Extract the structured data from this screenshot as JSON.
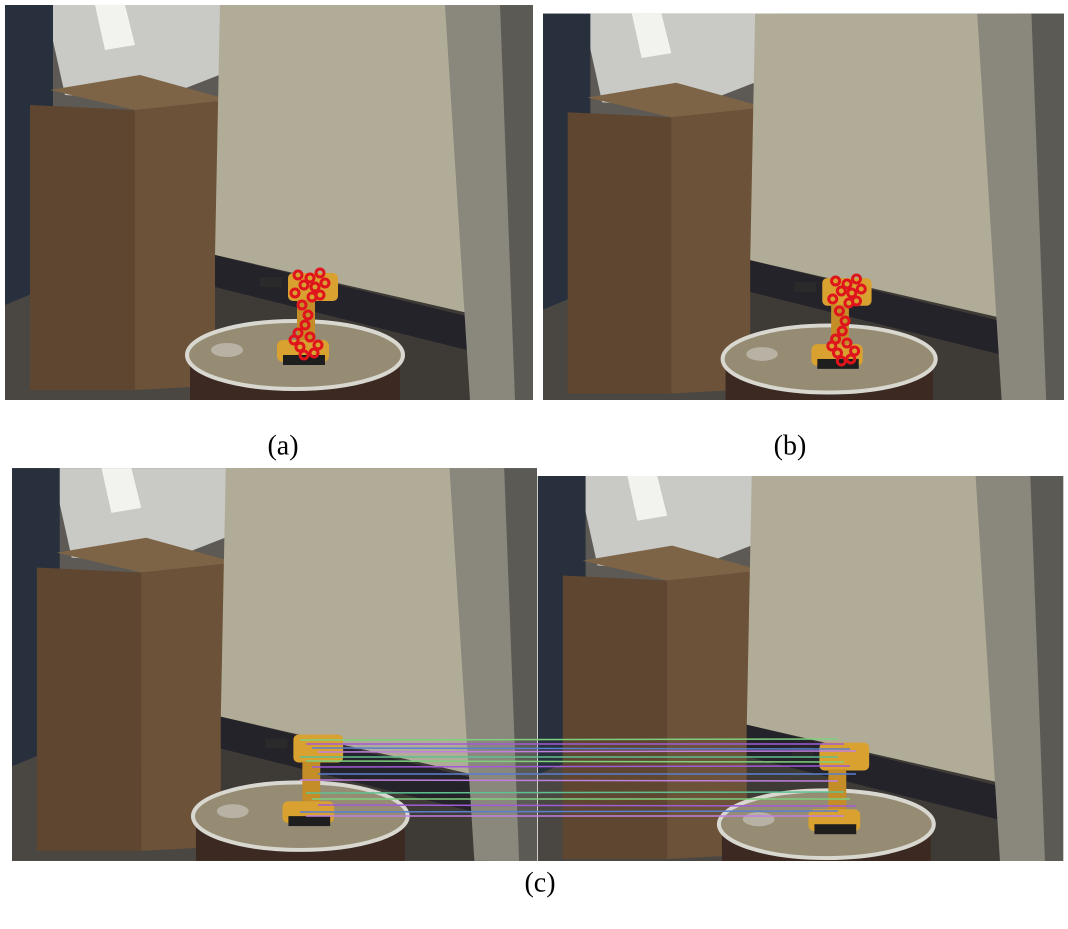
{
  "panels": [
    {
      "label": "(a)"
    },
    {
      "label": "(b)"
    },
    {
      "label": "(c)"
    }
  ]
}
